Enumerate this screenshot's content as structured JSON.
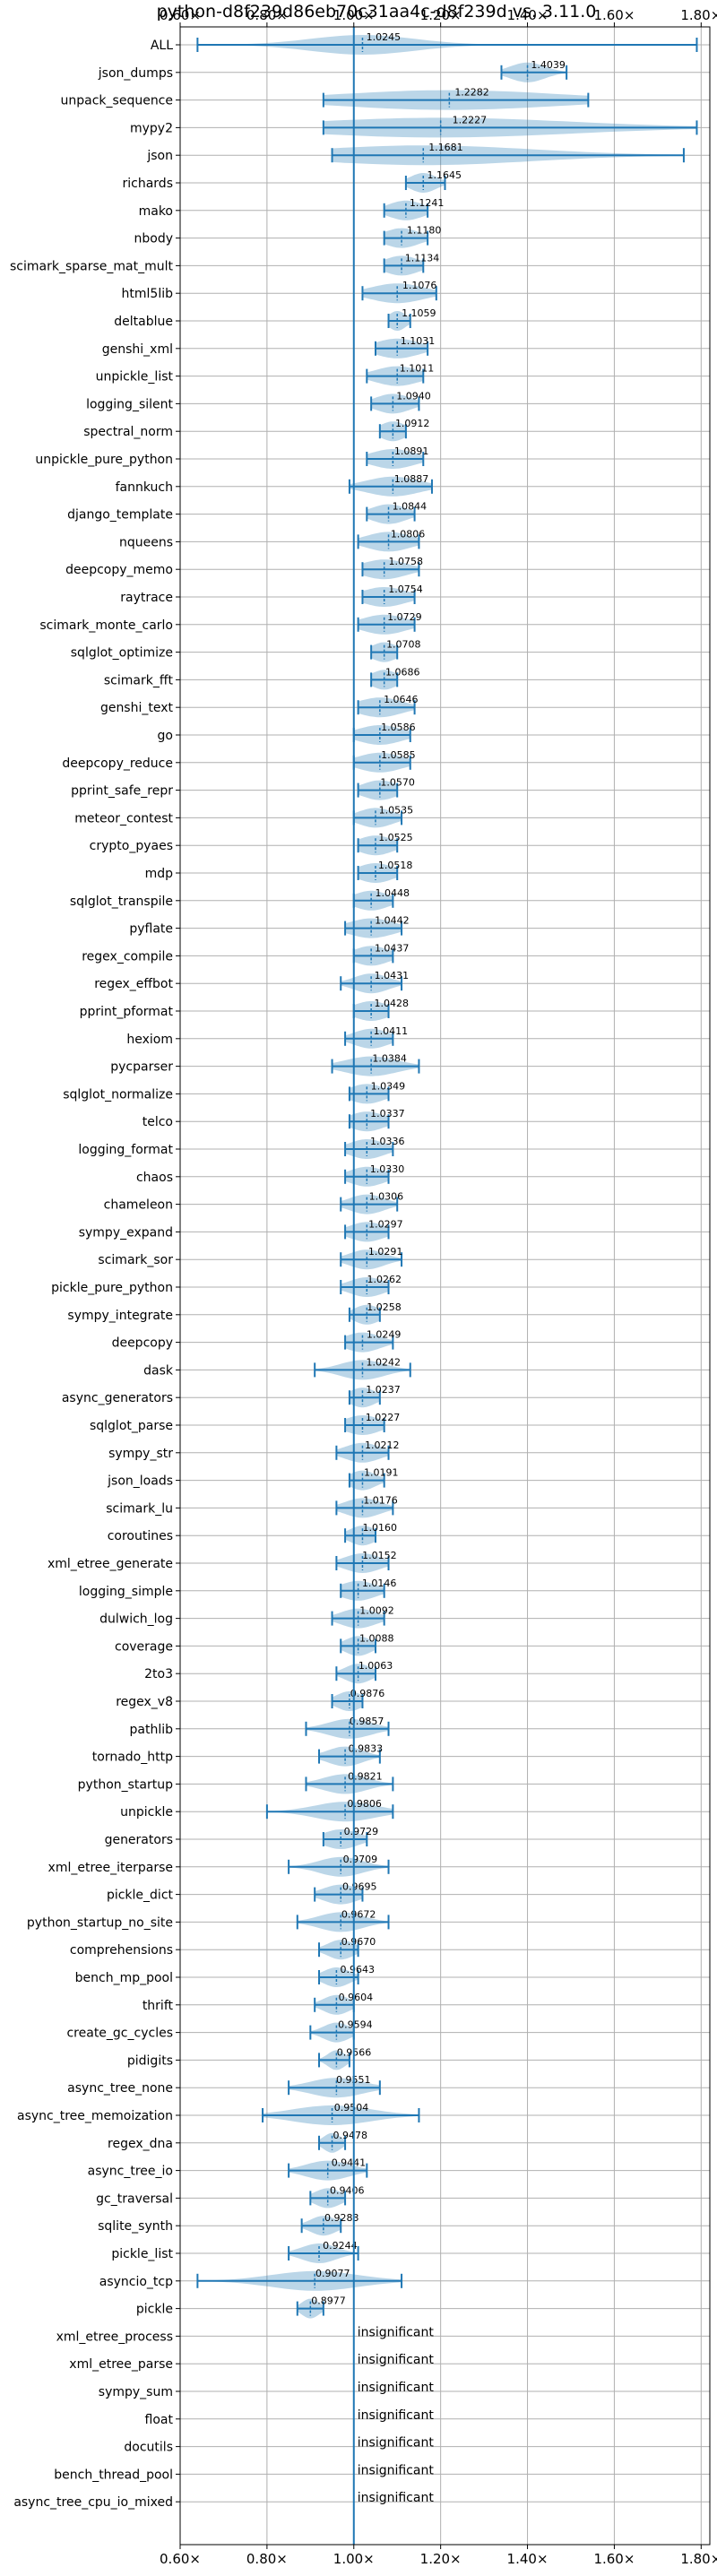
{
  "chart_data": {
    "type": "violin",
    "title": "python-d8f239d86eb70c31aa4c-d8f239d vs. 3.11.0",
    "xlabel": "",
    "ylabel": "",
    "xlim": [
      0.6,
      1.82
    ],
    "xticks": [
      0.6,
      0.8,
      1.0,
      1.2,
      1.4,
      1.6,
      1.8
    ],
    "xtick_labels": [
      "0.60×",
      "0.80×",
      "1.00×",
      "1.20×",
      "1.40×",
      "1.60×",
      "1.80×"
    ],
    "reference_line": 1.0,
    "grid": true,
    "insignificant_text": "insignificant",
    "benchmarks": [
      {
        "name": "ALL",
        "label": "1.0245",
        "min": 0.64,
        "max": 1.79,
        "median": 1.02,
        "spread": 0.12
      },
      {
        "name": "json_dumps",
        "label": "1.4039",
        "min": 1.34,
        "max": 1.49,
        "median": 1.4,
        "spread": 0.04
      },
      {
        "name": "unpack_sequence",
        "label": "1.2282",
        "min": 0.93,
        "max": 1.54,
        "median": 1.22,
        "spread": 0.25
      },
      {
        "name": "mypy2",
        "label": "1.2227",
        "min": 0.93,
        "max": 1.79,
        "median": 1.2,
        "spread": 0.3
      },
      {
        "name": "json",
        "label": "1.1681",
        "min": 0.95,
        "max": 1.76,
        "median": 1.16,
        "spread": 0.25
      },
      {
        "name": "richards",
        "label": "1.1645",
        "min": 1.12,
        "max": 1.21,
        "median": 1.16,
        "spread": 0.03
      },
      {
        "name": "mako",
        "label": "1.1241",
        "min": 1.07,
        "max": 1.17,
        "median": 1.12,
        "spread": 0.04
      },
      {
        "name": "nbody",
        "label": "1.1180",
        "min": 1.07,
        "max": 1.17,
        "median": 1.11,
        "spread": 0.04
      },
      {
        "name": "scimark_sparse_mat_mult",
        "label": "1.1134",
        "min": 1.07,
        "max": 1.16,
        "median": 1.11,
        "spread": 0.04
      },
      {
        "name": "html5lib",
        "label": "1.1076",
        "min": 1.02,
        "max": 1.19,
        "median": 1.1,
        "spread": 0.06
      },
      {
        "name": "deltablue",
        "label": "1.1059",
        "min": 1.08,
        "max": 1.13,
        "median": 1.1,
        "spread": 0.02
      },
      {
        "name": "genshi_xml",
        "label": "1.1031",
        "min": 1.05,
        "max": 1.17,
        "median": 1.1,
        "spread": 0.05
      },
      {
        "name": "unpickle_list",
        "label": "1.1011",
        "min": 1.03,
        "max": 1.16,
        "median": 1.1,
        "spread": 0.05
      },
      {
        "name": "logging_silent",
        "label": "1.0940",
        "min": 1.04,
        "max": 1.15,
        "median": 1.09,
        "spread": 0.04
      },
      {
        "name": "spectral_norm",
        "label": "1.0912",
        "min": 1.06,
        "max": 1.12,
        "median": 1.09,
        "spread": 0.03
      },
      {
        "name": "unpickle_pure_python",
        "label": "1.0891",
        "min": 1.03,
        "max": 1.16,
        "median": 1.09,
        "spread": 0.05
      },
      {
        "name": "fannkuch",
        "label": "1.0887",
        "min": 0.99,
        "max": 1.18,
        "median": 1.09,
        "spread": 0.06
      },
      {
        "name": "django_template",
        "label": "1.0844",
        "min": 1.03,
        "max": 1.14,
        "median": 1.08,
        "spread": 0.04
      },
      {
        "name": "nqueens",
        "label": "1.0806",
        "min": 1.01,
        "max": 1.15,
        "median": 1.08,
        "spread": 0.05
      },
      {
        "name": "deepcopy_memo",
        "label": "1.0758",
        "min": 1.02,
        "max": 1.15,
        "median": 1.07,
        "spread": 0.05
      },
      {
        "name": "raytrace",
        "label": "1.0754",
        "min": 1.02,
        "max": 1.14,
        "median": 1.07,
        "spread": 0.05
      },
      {
        "name": "scimark_monte_carlo",
        "label": "1.0729",
        "min": 1.01,
        "max": 1.14,
        "median": 1.07,
        "spread": 0.05
      },
      {
        "name": "sqlglot_optimize",
        "label": "1.0708",
        "min": 1.04,
        "max": 1.1,
        "median": 1.07,
        "spread": 0.03
      },
      {
        "name": "scimark_fft",
        "label": "1.0686",
        "min": 1.04,
        "max": 1.1,
        "median": 1.07,
        "spread": 0.03
      },
      {
        "name": "genshi_text",
        "label": "1.0646",
        "min": 1.01,
        "max": 1.14,
        "median": 1.06,
        "spread": 0.05
      },
      {
        "name": "go",
        "label": "1.0586",
        "min": 1.0,
        "max": 1.13,
        "median": 1.06,
        "spread": 0.05
      },
      {
        "name": "deepcopy_reduce",
        "label": "1.0585",
        "min": 1.0,
        "max": 1.13,
        "median": 1.06,
        "spread": 0.05
      },
      {
        "name": "pprint_safe_repr",
        "label": "1.0570",
        "min": 1.01,
        "max": 1.1,
        "median": 1.06,
        "spread": 0.04
      },
      {
        "name": "meteor_contest",
        "label": "1.0535",
        "min": 1.0,
        "max": 1.11,
        "median": 1.05,
        "spread": 0.04
      },
      {
        "name": "crypto_pyaes",
        "label": "1.0525",
        "min": 1.01,
        "max": 1.1,
        "median": 1.05,
        "spread": 0.04
      },
      {
        "name": "mdp",
        "label": "1.0518",
        "min": 1.01,
        "max": 1.1,
        "median": 1.05,
        "spread": 0.04
      },
      {
        "name": "sqlglot_transpile",
        "label": "1.0448",
        "min": 1.0,
        "max": 1.09,
        "median": 1.04,
        "spread": 0.04
      },
      {
        "name": "pyflate",
        "label": "1.0442",
        "min": 0.98,
        "max": 1.11,
        "median": 1.04,
        "spread": 0.05
      },
      {
        "name": "regex_compile",
        "label": "1.0437",
        "min": 1.0,
        "max": 1.09,
        "median": 1.04,
        "spread": 0.04
      },
      {
        "name": "regex_effbot",
        "label": "1.0431",
        "min": 0.97,
        "max": 1.11,
        "median": 1.04,
        "spread": 0.04
      },
      {
        "name": "pprint_pformat",
        "label": "1.0428",
        "min": 1.0,
        "max": 1.08,
        "median": 1.04,
        "spread": 0.04
      },
      {
        "name": "hexiom",
        "label": "1.0411",
        "min": 0.98,
        "max": 1.09,
        "median": 1.04,
        "spread": 0.04
      },
      {
        "name": "pycparser",
        "label": "1.0384",
        "min": 0.95,
        "max": 1.15,
        "median": 1.04,
        "spread": 0.06
      },
      {
        "name": "sqlglot_normalize",
        "label": "1.0349",
        "min": 0.99,
        "max": 1.08,
        "median": 1.03,
        "spread": 0.04
      },
      {
        "name": "telco",
        "label": "1.0337",
        "min": 0.99,
        "max": 1.08,
        "median": 1.03,
        "spread": 0.04
      },
      {
        "name": "logging_format",
        "label": "1.0336",
        "min": 0.98,
        "max": 1.09,
        "median": 1.03,
        "spread": 0.04
      },
      {
        "name": "chaos",
        "label": "1.0330",
        "min": 0.98,
        "max": 1.08,
        "median": 1.03,
        "spread": 0.04
      },
      {
        "name": "chameleon",
        "label": "1.0306",
        "min": 0.97,
        "max": 1.1,
        "median": 1.03,
        "spread": 0.04
      },
      {
        "name": "sympy_expand",
        "label": "1.0297",
        "min": 0.98,
        "max": 1.08,
        "median": 1.03,
        "spread": 0.04
      },
      {
        "name": "scimark_sor",
        "label": "1.0291",
        "min": 0.97,
        "max": 1.11,
        "median": 1.03,
        "spread": 0.04
      },
      {
        "name": "pickle_pure_python",
        "label": "1.0262",
        "min": 0.97,
        "max": 1.08,
        "median": 1.03,
        "spread": 0.04
      },
      {
        "name": "sympy_integrate",
        "label": "1.0258",
        "min": 0.99,
        "max": 1.06,
        "median": 1.03,
        "spread": 0.03
      },
      {
        "name": "deepcopy",
        "label": "1.0249",
        "min": 0.98,
        "max": 1.09,
        "median": 1.02,
        "spread": 0.04
      },
      {
        "name": "dask",
        "label": "1.0242",
        "min": 0.91,
        "max": 1.13,
        "median": 1.02,
        "spread": 0.05
      },
      {
        "name": "async_generators",
        "label": "1.0237",
        "min": 0.99,
        "max": 1.06,
        "median": 1.02,
        "spread": 0.03
      },
      {
        "name": "sqlglot_parse",
        "label": "1.0227",
        "min": 0.98,
        "max": 1.07,
        "median": 1.02,
        "spread": 0.04
      },
      {
        "name": "sympy_str",
        "label": "1.0212",
        "min": 0.96,
        "max": 1.08,
        "median": 1.02,
        "spread": 0.04
      },
      {
        "name": "json_loads",
        "label": "1.0191",
        "min": 0.99,
        "max": 1.07,
        "median": 1.02,
        "spread": 0.03
      },
      {
        "name": "scimark_lu",
        "label": "1.0176",
        "min": 0.96,
        "max": 1.09,
        "median": 1.02,
        "spread": 0.04
      },
      {
        "name": "coroutines",
        "label": "1.0160",
        "min": 0.98,
        "max": 1.05,
        "median": 1.02,
        "spread": 0.03
      },
      {
        "name": "xml_etree_generate",
        "label": "1.0152",
        "min": 0.96,
        "max": 1.08,
        "median": 1.02,
        "spread": 0.04
      },
      {
        "name": "logging_simple",
        "label": "1.0146",
        "min": 0.97,
        "max": 1.07,
        "median": 1.01,
        "spread": 0.04
      },
      {
        "name": "dulwich_log",
        "label": "1.0092",
        "min": 0.95,
        "max": 1.07,
        "median": 1.01,
        "spread": 0.04
      },
      {
        "name": "coverage",
        "label": "1.0088",
        "min": 0.97,
        "max": 1.05,
        "median": 1.01,
        "spread": 0.03
      },
      {
        "name": "2to3",
        "label": "1.0063",
        "min": 0.96,
        "max": 1.05,
        "median": 1.01,
        "spread": 0.03
      },
      {
        "name": "regex_v8",
        "label": "0.9876",
        "min": 0.95,
        "max": 1.02,
        "median": 0.99,
        "spread": 0.03
      },
      {
        "name": "pathlib",
        "label": "0.9857",
        "min": 0.89,
        "max": 1.08,
        "median": 0.99,
        "spread": 0.05
      },
      {
        "name": "tornado_http",
        "label": "0.9833",
        "min": 0.92,
        "max": 1.06,
        "median": 0.98,
        "spread": 0.04
      },
      {
        "name": "python_startup",
        "label": "0.9821",
        "min": 0.89,
        "max": 1.09,
        "median": 0.98,
        "spread": 0.05
      },
      {
        "name": "unpickle",
        "label": "0.9806",
        "min": 0.8,
        "max": 1.09,
        "median": 0.98,
        "spread": 0.07
      },
      {
        "name": "generators",
        "label": "0.9729",
        "min": 0.93,
        "max": 1.03,
        "median": 0.97,
        "spread": 0.04
      },
      {
        "name": "xml_etree_iterparse",
        "label": "0.9709",
        "min": 0.85,
        "max": 1.08,
        "median": 0.97,
        "spread": 0.05
      },
      {
        "name": "pickle_dict",
        "label": "0.9695",
        "min": 0.91,
        "max": 1.02,
        "median": 0.97,
        "spread": 0.04
      },
      {
        "name": "python_startup_no_site",
        "label": "0.9672",
        "min": 0.87,
        "max": 1.08,
        "median": 0.97,
        "spread": 0.05
      },
      {
        "name": "comprehensions",
        "label": "0.9670",
        "min": 0.92,
        "max": 1.01,
        "median": 0.97,
        "spread": 0.03
      },
      {
        "name": "bench_mp_pool",
        "label": "0.9643",
        "min": 0.92,
        "max": 1.01,
        "median": 0.96,
        "spread": 0.03
      },
      {
        "name": "thrift",
        "label": "0.9604",
        "min": 0.91,
        "max": 1.0,
        "median": 0.96,
        "spread": 0.03
      },
      {
        "name": "create_gc_cycles",
        "label": "0.9594",
        "min": 0.9,
        "max": 1.0,
        "median": 0.96,
        "spread": 0.03
      },
      {
        "name": "pidigits",
        "label": "0.9566",
        "min": 0.92,
        "max": 0.99,
        "median": 0.96,
        "spread": 0.02
      },
      {
        "name": "async_tree_none",
        "label": "0.9551",
        "min": 0.85,
        "max": 1.06,
        "median": 0.96,
        "spread": 0.06
      },
      {
        "name": "async_tree_memoization",
        "label": "0.9504",
        "min": 0.79,
        "max": 1.15,
        "median": 0.95,
        "spread": 0.09
      },
      {
        "name": "regex_dna",
        "label": "0.9478",
        "min": 0.92,
        "max": 0.98,
        "median": 0.95,
        "spread": 0.02
      },
      {
        "name": "async_tree_io",
        "label": "0.9441",
        "min": 0.85,
        "max": 1.03,
        "median": 0.94,
        "spread": 0.05
      },
      {
        "name": "gc_traversal",
        "label": "0.9406",
        "min": 0.9,
        "max": 0.98,
        "median": 0.94,
        "spread": 0.03
      },
      {
        "name": "sqlite_synth",
        "label": "0.9283",
        "min": 0.88,
        "max": 0.97,
        "median": 0.93,
        "spread": 0.03
      },
      {
        "name": "pickle_list",
        "label": "0.9244",
        "min": 0.85,
        "max": 1.01,
        "median": 0.92,
        "spread": 0.04
      },
      {
        "name": "asyncio_tcp",
        "label": "0.9077",
        "min": 0.64,
        "max": 1.11,
        "median": 0.91,
        "spread": 0.1
      },
      {
        "name": "pickle",
        "label": "0.8977",
        "min": 0.87,
        "max": 0.93,
        "median": 0.9,
        "spread": 0.02
      },
      {
        "name": "xml_etree_process",
        "label": "insignificant",
        "insignificant": true
      },
      {
        "name": "xml_etree_parse",
        "label": "insignificant",
        "insignificant": true
      },
      {
        "name": "sympy_sum",
        "label": "insignificant",
        "insignificant": true
      },
      {
        "name": "float",
        "label": "insignificant",
        "insignificant": true
      },
      {
        "name": "docutils",
        "label": "insignificant",
        "insignificant": true
      },
      {
        "name": "bench_thread_pool",
        "label": "insignificant",
        "insignificant": true
      },
      {
        "name": "async_tree_cpu_io_mixed",
        "label": "insignificant",
        "insignificant": true
      }
    ]
  }
}
